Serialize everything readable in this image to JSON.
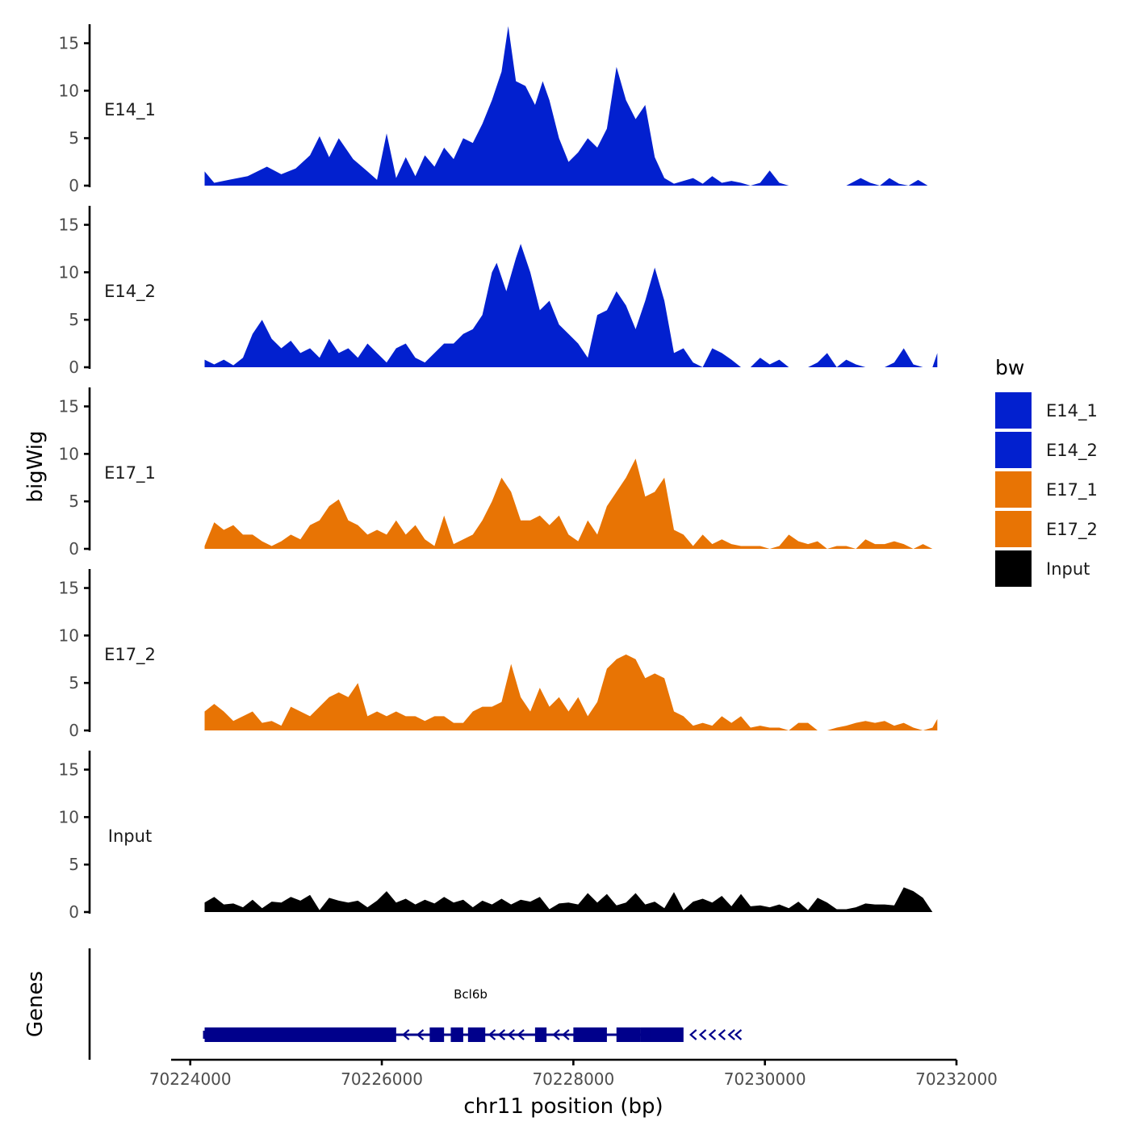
{
  "chart_data": {
    "type": "area",
    "chromosome": "chr11",
    "xlabel": "chr11 position (bp)",
    "ylabel": "bigWig",
    "genes_label": "Genes",
    "xlim": [
      70223800,
      70232000
    ],
    "x_ticks": [
      70224000,
      70226000,
      70228000,
      70230000,
      70232000
    ],
    "x_tick_labels": [
      "70224000",
      "70226000",
      "70228000",
      "70230000",
      "70232000"
    ],
    "ylim": [
      0,
      17
    ],
    "y_ticks": [
      0,
      5,
      10,
      15
    ],
    "y_tick_labels": [
      "0",
      "5",
      "10",
      "15"
    ],
    "legend": {
      "title": "bw",
      "entries": [
        {
          "label": "E14_1",
          "color": "#0220CF"
        },
        {
          "label": "E14_2",
          "color": "#0220CF"
        },
        {
          "label": "E17_1",
          "color": "#E87404"
        },
        {
          "label": "E17_2",
          "color": "#E87404"
        },
        {
          "label": "Input",
          "color": "#000000"
        }
      ]
    },
    "series": [
      {
        "name": "E14_1",
        "color": "#0220CF",
        "x": [
          70224150,
          70224250,
          70224400,
          70224600,
          70224800,
          70224950,
          70225100,
          70225250,
          70225350,
          70225450,
          70225550,
          70225700,
          70225850,
          70225950,
          70226050,
          70226150,
          70226250,
          70226350,
          70226450,
          70226550,
          70226650,
          70226750,
          70226850,
          70226950,
          70227050,
          70227150,
          70227250,
          70227320,
          70227400,
          70227500,
          70227600,
          70227680,
          70227750,
          70227850,
          70227950,
          70228050,
          70228150,
          70228250,
          70228350,
          70228450,
          70228550,
          70228650,
          70228750,
          70228850,
          70228950,
          70229050,
          70229150,
          70229250,
          70229350,
          70229450,
          70229550,
          70229650,
          70229750,
          70229850,
          70229950,
          70230050,
          70230150,
          70230250,
          70230350,
          70230450,
          70230550,
          70230700,
          70230850,
          70231000,
          70231100,
          70231200,
          70231300,
          70231400,
          70231500,
          70231600,
          70231700,
          70231800
        ],
        "values": [
          1.5,
          0.3,
          0.6,
          1.0,
          2.0,
          1.2,
          1.8,
          3.2,
          5.2,
          3.0,
          5.0,
          2.8,
          1.5,
          0.6,
          5.5,
          0.8,
          3.0,
          1.0,
          3.2,
          2.0,
          4.0,
          2.8,
          5.0,
          4.5,
          6.5,
          9.0,
          12.0,
          16.8,
          11.0,
          10.5,
          8.5,
          11.0,
          9.0,
          5.0,
          2.5,
          3.5,
          5.0,
          4.0,
          6.0,
          12.5,
          9.0,
          7.0,
          8.5,
          3.0,
          0.8,
          0.2,
          0.5,
          0.8,
          0.2,
          1.0,
          0.3,
          0.5,
          0.3,
          0.0,
          0.3,
          1.6,
          0.3,
          0.0,
          0.0,
          0.0,
          0.0,
          0.0,
          0.0,
          0.8,
          0.3,
          0.0,
          0.8,
          0.2,
          0.0,
          0.6,
          0.0,
          0.0
        ]
      },
      {
        "name": "E14_2",
        "color": "#0220CF",
        "x": [
          70224150,
          70224250,
          70224350,
          70224450,
          70224550,
          70224650,
          70224750,
          70224850,
          70224950,
          70225050,
          70225150,
          70225250,
          70225350,
          70225450,
          70225550,
          70225650,
          70225750,
          70225850,
          70225950,
          70226050,
          70226150,
          70226250,
          70226350,
          70226450,
          70226550,
          70226650,
          70226750,
          70226850,
          70226950,
          70227050,
          70227150,
          70227200,
          70227300,
          70227400,
          70227450,
          70227550,
          70227650,
          70227750,
          70227850,
          70227950,
          70228050,
          70228150,
          70228250,
          70228350,
          70228450,
          70228550,
          70228650,
          70228750,
          70228850,
          70228950,
          70229050,
          70229150,
          70229250,
          70229350,
          70229450,
          70229550,
          70229650,
          70229750,
          70229850,
          70229950,
          70230050,
          70230150,
          70230250,
          70230350,
          70230450,
          70230550,
          70230650,
          70230750,
          70230850,
          70230950,
          70231050,
          70231150,
          70231250,
          70231350,
          70231450,
          70231550,
          70231650,
          70231750,
          70231800
        ],
        "values": [
          0.8,
          0.3,
          0.8,
          0.2,
          1.0,
          3.5,
          5.0,
          3.0,
          2.0,
          2.8,
          1.5,
          2.0,
          1.0,
          3.0,
          1.5,
          2.0,
          1.0,
          2.5,
          1.5,
          0.5,
          2.0,
          2.5,
          1.0,
          0.5,
          1.5,
          2.5,
          2.5,
          3.5,
          4.0,
          5.5,
          10.0,
          11.0,
          8.0,
          11.5,
          13.0,
          10.0,
          6.0,
          7.0,
          4.5,
          3.5,
          2.5,
          1.0,
          5.5,
          6.0,
          8.0,
          6.5,
          4.0,
          7.0,
          10.5,
          7.0,
          1.5,
          2.0,
          0.5,
          0.0,
          2.0,
          1.5,
          0.8,
          0.0,
          0.0,
          1.0,
          0.3,
          0.8,
          0.0,
          0.0,
          0.0,
          0.5,
          1.5,
          0.0,
          0.8,
          0.3,
          0.0,
          0.0,
          0.0,
          0.5,
          2.0,
          0.3,
          0.0,
          0.0,
          1.5
        ]
      },
      {
        "name": "E17_1",
        "color": "#E87404",
        "x": [
          70224150,
          70224250,
          70224350,
          70224450,
          70224550,
          70224650,
          70224750,
          70224850,
          70224950,
          70225050,
          70225150,
          70225250,
          70225350,
          70225450,
          70225550,
          70225650,
          70225750,
          70225850,
          70225950,
          70226050,
          70226150,
          70226250,
          70226350,
          70226450,
          70226550,
          70226650,
          70226750,
          70226850,
          70226950,
          70227050,
          70227150,
          70227250,
          70227350,
          70227450,
          70227550,
          70227650,
          70227750,
          70227850,
          70227950,
          70228050,
          70228150,
          70228250,
          70228350,
          70228450,
          70228550,
          70228650,
          70228750,
          70228850,
          70228950,
          70229050,
          70229150,
          70229250,
          70229350,
          70229450,
          70229550,
          70229650,
          70229750,
          70229850,
          70229950,
          70230050,
          70230150,
          70230250,
          70230350,
          70230450,
          70230550,
          70230650,
          70230750,
          70230850,
          70230950,
          70231050,
          70231150,
          70231250,
          70231350,
          70231450,
          70231550,
          70231650,
          70231750,
          70231800
        ],
        "values": [
          0.3,
          2.8,
          2.0,
          2.5,
          1.5,
          1.5,
          0.8,
          0.3,
          0.8,
          1.5,
          1.0,
          2.5,
          3.0,
          4.5,
          5.2,
          3.0,
          2.5,
          1.5,
          2.0,
          1.5,
          3.0,
          1.5,
          2.5,
          1.0,
          0.3,
          3.5,
          0.5,
          1.0,
          1.5,
          3.0,
          5.0,
          7.5,
          6.0,
          3.0,
          3.0,
          3.5,
          2.5,
          3.5,
          1.5,
          0.8,
          3.0,
          1.5,
          4.5,
          6.0,
          7.5,
          9.5,
          5.5,
          6.0,
          7.5,
          2.0,
          1.5,
          0.3,
          1.5,
          0.5,
          1.0,
          0.5,
          0.3,
          0.3,
          0.3,
          0.0,
          0.3,
          1.5,
          0.8,
          0.5,
          0.8,
          0.0,
          0.3,
          0.3,
          0.0,
          1.0,
          0.5,
          0.5,
          0.8,
          0.5,
          0.0,
          0.5,
          0.0,
          0.0
        ]
      },
      {
        "name": "E17_2",
        "color": "#E87404",
        "x": [
          70224150,
          70224250,
          70224350,
          70224450,
          70224550,
          70224650,
          70224750,
          70224850,
          70224950,
          70225050,
          70225150,
          70225250,
          70225350,
          70225450,
          70225550,
          70225650,
          70225750,
          70225850,
          70225950,
          70226050,
          70226150,
          70226250,
          70226350,
          70226450,
          70226550,
          70226650,
          70226750,
          70226850,
          70226950,
          70227050,
          70227150,
          70227250,
          70227350,
          70227450,
          70227550,
          70227650,
          70227750,
          70227850,
          70227950,
          70228050,
          70228150,
          70228250,
          70228350,
          70228450,
          70228550,
          70228650,
          70228750,
          70228850,
          70228950,
          70229050,
          70229150,
          70229250,
          70229350,
          70229450,
          70229550,
          70229650,
          70229750,
          70229850,
          70229950,
          70230050,
          70230150,
          70230250,
          70230350,
          70230450,
          70230550,
          70230650,
          70230750,
          70230850,
          70230950,
          70231050,
          70231150,
          70231250,
          70231350,
          70231450,
          70231550,
          70231650,
          70231750,
          70231800
        ],
        "values": [
          2.0,
          2.8,
          2.0,
          1.0,
          1.5,
          2.0,
          0.8,
          1.0,
          0.5,
          2.5,
          2.0,
          1.5,
          2.5,
          3.5,
          4.0,
          3.5,
          5.0,
          1.5,
          2.0,
          1.5,
          2.0,
          1.5,
          1.5,
          1.0,
          1.5,
          1.5,
          0.8,
          0.8,
          2.0,
          2.5,
          2.5,
          3.0,
          7.0,
          3.5,
          2.0,
          4.5,
          2.5,
          3.5,
          2.0,
          3.5,
          1.5,
          3.0,
          6.5,
          7.5,
          8.0,
          7.5,
          5.5,
          6.0,
          5.5,
          2.0,
          1.5,
          0.5,
          0.8,
          0.5,
          1.5,
          0.8,
          1.5,
          0.3,
          0.5,
          0.3,
          0.3,
          0.0,
          0.8,
          0.8,
          0.0,
          0.0,
          0.3,
          0.5,
          0.8,
          1.0,
          0.8,
          1.0,
          0.5,
          0.8,
          0.3,
          0.0,
          0.3,
          1.2
        ]
      },
      {
        "name": "Input",
        "color": "#000000",
        "x": [
          70224150,
          70224250,
          70224350,
          70224450,
          70224550,
          70224650,
          70224750,
          70224850,
          70224950,
          70225050,
          70225150,
          70225250,
          70225350,
          70225450,
          70225550,
          70225650,
          70225750,
          70225850,
          70225950,
          70226050,
          70226150,
          70226250,
          70226350,
          70226450,
          70226550,
          70226650,
          70226750,
          70226850,
          70226950,
          70227050,
          70227150,
          70227250,
          70227350,
          70227450,
          70227550,
          70227650,
          70227750,
          70227850,
          70227950,
          70228050,
          70228150,
          70228250,
          70228350,
          70228450,
          70228550,
          70228650,
          70228750,
          70228850,
          70228950,
          70229050,
          70229150,
          70229250,
          70229350,
          70229450,
          70229550,
          70229650,
          70229750,
          70229850,
          70229950,
          70230050,
          70230150,
          70230250,
          70230350,
          70230450,
          70230550,
          70230650,
          70230750,
          70230850,
          70230950,
          70231050,
          70231150,
          70231250,
          70231350,
          70231450,
          70231550,
          70231650,
          70231750
        ],
        "values": [
          1.0,
          1.6,
          0.8,
          0.9,
          0.5,
          1.3,
          0.4,
          1.1,
          1.0,
          1.6,
          1.2,
          1.8,
          0.2,
          1.5,
          1.2,
          1.0,
          1.2,
          0.5,
          1.2,
          2.2,
          1.0,
          1.4,
          0.8,
          1.3,
          0.9,
          1.6,
          1.0,
          1.3,
          0.5,
          1.2,
          0.8,
          1.4,
          0.8,
          1.3,
          1.1,
          1.6,
          0.3,
          0.9,
          1.0,
          0.8,
          2.0,
          1.0,
          1.9,
          0.7,
          1.0,
          2.0,
          0.8,
          1.1,
          0.4,
          2.1,
          0.2,
          1.1,
          1.4,
          1.0,
          1.7,
          0.6,
          1.9,
          0.6,
          0.7,
          0.5,
          0.8,
          0.4,
          1.1,
          0.2,
          1.5,
          1.0,
          0.3,
          0.3,
          0.5,
          0.9,
          0.8,
          0.8,
          0.7,
          2.6,
          2.2,
          1.5,
          0.0
        ]
      }
    ],
    "genes": [
      {
        "name": "Bcl6b",
        "start": 70224150,
        "end": 70228800,
        "strand": "-",
        "exons": [
          [
            70224150,
            70226150
          ],
          [
            70226500,
            70226650
          ],
          [
            70226720,
            70226850
          ],
          [
            70226900,
            70227080
          ],
          [
            70227600,
            70227720
          ],
          [
            70228000,
            70228350
          ],
          [
            70228450,
            70228700
          ],
          [
            70228700,
            70229150
          ],
          [
            70228700,
            70228800
          ]
        ],
        "arrows": [
          70226250,
          70226400,
          70227150,
          70227250,
          70227350,
          70227450,
          70227820,
          70227920,
          70229250,
          70229350,
          70229450,
          70229550,
          70229650,
          70229720
        ]
      }
    ]
  }
}
